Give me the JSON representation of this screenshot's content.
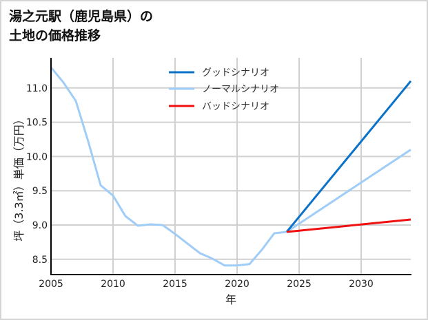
{
  "title": {
    "line1": "湯之元駅（鹿児島県）の",
    "line2": "土地の価格推移"
  },
  "legend": {
    "good": "グッドシナリオ",
    "normal": "ノーマルシナリオ",
    "bad": "バッドシナリオ"
  },
  "axes": {
    "xlabel": "年",
    "ylabel": "坪（3.3㎡）単価（万円）"
  },
  "colors": {
    "good": "#0a72c8",
    "normal": "#9fcdf7",
    "bad": "#f01010",
    "grid": "#d0d0d0"
  },
  "chart_data": {
    "type": "line",
    "title": "湯之元駅（鹿児島県）の土地の価格推移",
    "xlabel": "年",
    "ylabel": "坪（3.3㎡）単価（万円）",
    "xlim": [
      2005,
      2034
    ],
    "ylim": [
      8.27,
      11.4
    ],
    "xticks": [
      2005,
      2010,
      2015,
      2020,
      2025,
      2030
    ],
    "yticks": [
      8.5,
      9.0,
      9.5,
      10.0,
      10.5,
      11.0
    ],
    "grid": true,
    "legend_position": "upper center",
    "series": [
      {
        "name": "ノーマルシナリオ(実績)",
        "x": [
          2005,
          2006,
          2007,
          2008,
          2009,
          2010,
          2011,
          2012,
          2013,
          2014,
          2015,
          2016,
          2017,
          2018,
          2019,
          2020,
          2021,
          2022,
          2023,
          2024
        ],
        "values": [
          11.3,
          11.08,
          10.81,
          10.22,
          9.58,
          9.43,
          9.13,
          8.99,
          9.01,
          9.0,
          8.87,
          8.73,
          8.59,
          8.51,
          8.41,
          8.41,
          8.43,
          8.64,
          8.88,
          8.9
        ]
      },
      {
        "name": "グッドシナリオ",
        "x": [
          2024,
          2034
        ],
        "values": [
          8.9,
          11.1
        ]
      },
      {
        "name": "ノーマルシナリオ",
        "x": [
          2024,
          2034
        ],
        "values": [
          8.9,
          10.1
        ]
      },
      {
        "name": "バッドシナリオ",
        "x": [
          2024,
          2034
        ],
        "values": [
          8.9,
          9.08
        ]
      }
    ]
  }
}
